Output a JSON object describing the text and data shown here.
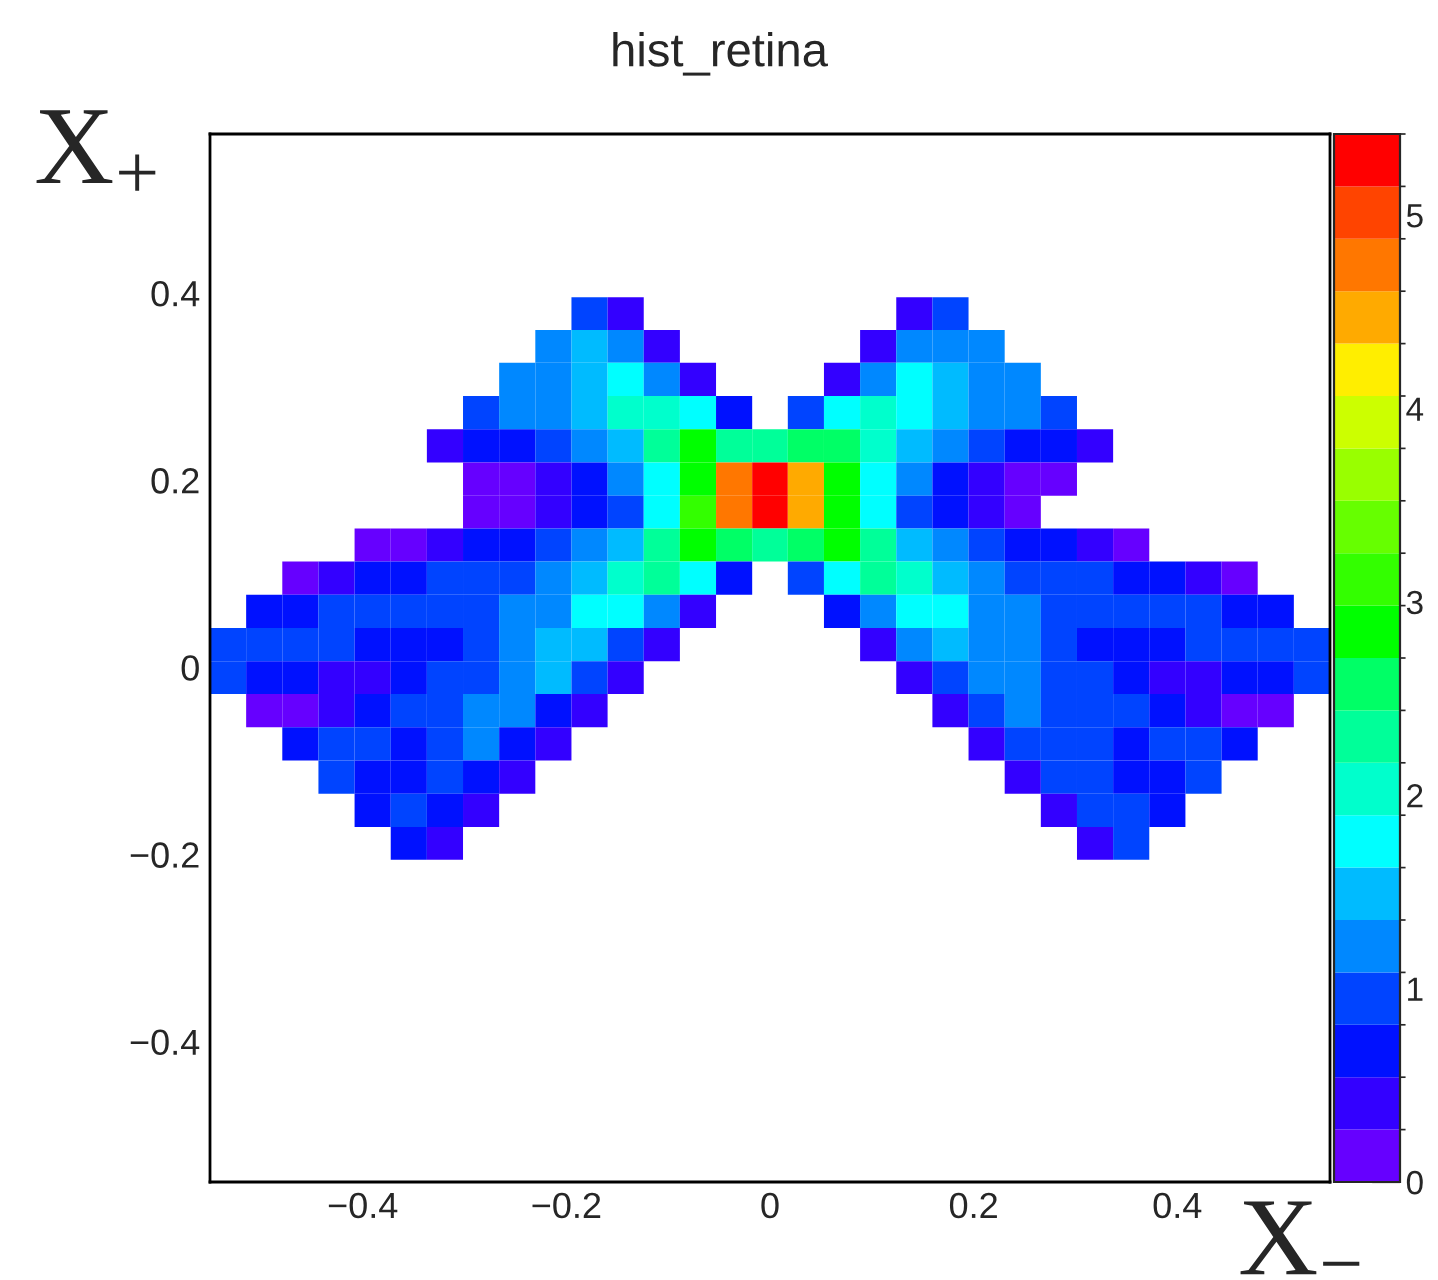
{
  "chart_data": {
    "type": "heatmap",
    "title": "hist_retina",
    "xlabel": "X$_{−}$",
    "ylabel": "X$_{+}$",
    "x": [
      -0.532,
      -0.497,
      -0.461,
      -0.426,
      -0.39,
      -0.355,
      -0.319,
      -0.284,
      -0.248,
      -0.213,
      -0.177,
      -0.142,
      -0.106,
      -0.071,
      -0.035,
      0,
      0.035,
      0.071,
      0.106,
      0.142,
      0.177,
      0.213,
      0.248,
      0.284,
      0.319,
      0.355,
      0.39,
      0.426,
      0.461,
      0.497,
      0.532
    ],
    "y": [
      0.378,
      0.343,
      0.308,
      0.272,
      0.237,
      0.201,
      0.166,
      0.131,
      0.095,
      0.06,
      0.024,
      -0.011,
      -0.046,
      -0.082,
      -0.117,
      -0.153,
      -0.188
    ],
    "cells": [
      [
        null,
        null,
        null,
        null,
        null,
        null,
        null,
        null,
        null,
        null,
        0.95,
        0.41,
        null,
        null,
        null,
        null,
        null,
        null,
        null,
        0.41,
        0.95,
        null,
        null,
        null,
        null,
        null,
        null,
        null,
        null,
        null,
        null
      ],
      [
        null,
        null,
        null,
        null,
        null,
        null,
        null,
        null,
        null,
        1.22,
        1.49,
        1.22,
        0.41,
        null,
        null,
        null,
        null,
        null,
        0.41,
        1.22,
        1.22,
        1.22,
        null,
        null,
        null,
        null,
        null,
        null,
        null,
        null,
        null
      ],
      [
        null,
        null,
        null,
        null,
        null,
        null,
        null,
        null,
        1.22,
        1.22,
        1.49,
        1.76,
        1.22,
        0.41,
        null,
        null,
        null,
        0.41,
        1.22,
        1.76,
        1.49,
        1.22,
        1.22,
        null,
        null,
        null,
        null,
        null,
        null,
        null,
        null
      ],
      [
        null,
        null,
        null,
        null,
        null,
        null,
        null,
        0.95,
        1.22,
        1.22,
        1.49,
        2.03,
        2.03,
        1.76,
        0.68,
        null,
        0.95,
        1.76,
        2.03,
        1.76,
        1.49,
        1.22,
        1.22,
        0.95,
        null,
        null,
        null,
        null,
        null,
        null,
        null
      ],
      [
        null,
        null,
        null,
        null,
        null,
        null,
        0.41,
        0.68,
        0.68,
        0.95,
        1.22,
        1.49,
        2.3,
        2.85,
        2.3,
        2.3,
        2.57,
        2.57,
        2.03,
        1.49,
        1.22,
        0.95,
        0.68,
        0.68,
        0.41,
        null,
        null,
        null,
        null,
        null,
        null
      ],
      [
        null,
        null,
        null,
        null,
        null,
        null,
        null,
        0.14,
        0.14,
        0.41,
        0.68,
        1.22,
        1.76,
        2.85,
        4.74,
        5.28,
        4.47,
        2.85,
        1.76,
        1.22,
        0.68,
        0.41,
        0.14,
        0.14,
        null,
        null,
        null,
        null,
        null,
        null,
        null
      ],
      [
        null,
        null,
        null,
        null,
        null,
        null,
        null,
        0.14,
        0.14,
        0.41,
        0.68,
        0.95,
        1.76,
        3.12,
        4.74,
        5.28,
        4.47,
        2.85,
        1.76,
        0.95,
        0.68,
        0.41,
        0.14,
        null,
        null,
        null,
        null,
        null,
        null,
        null,
        null
      ],
      [
        null,
        null,
        null,
        null,
        0.14,
        0.14,
        0.41,
        0.68,
        0.68,
        0.95,
        1.22,
        1.49,
        2.3,
        2.85,
        2.57,
        2.3,
        2.57,
        2.85,
        2.3,
        1.49,
        1.22,
        0.95,
        0.68,
        0.68,
        0.41,
        0.14,
        null,
        null,
        null,
        null,
        null
      ],
      [
        null,
        null,
        0.14,
        0.41,
        0.68,
        0.68,
        0.95,
        0.95,
        0.95,
        1.22,
        1.49,
        2.03,
        2.3,
        1.76,
        0.68,
        null,
        0.95,
        1.76,
        2.3,
        2.03,
        1.49,
        1.22,
        0.95,
        0.95,
        0.95,
        0.68,
        0.68,
        0.41,
        0.14,
        null,
        null
      ],
      [
        null,
        0.68,
        0.68,
        0.95,
        0.95,
        0.95,
        0.95,
        0.95,
        1.22,
        1.22,
        1.76,
        1.76,
        1.22,
        0.41,
        null,
        null,
        null,
        0.68,
        1.22,
        1.76,
        1.76,
        1.22,
        1.22,
        0.95,
        0.95,
        0.95,
        0.95,
        0.95,
        0.68,
        0.68,
        null
      ],
      [
        0.95,
        0.95,
        0.95,
        0.95,
        0.68,
        0.68,
        0.68,
        0.95,
        1.22,
        1.49,
        1.49,
        0.95,
        0.41,
        null,
        null,
        null,
        null,
        null,
        0.41,
        1.22,
        1.49,
        1.22,
        1.22,
        0.95,
        0.68,
        0.68,
        0.68,
        0.95,
        0.95,
        0.95,
        0.95
      ],
      [
        0.95,
        0.68,
        0.68,
        0.41,
        0.41,
        0.68,
        0.95,
        0.95,
        1.22,
        1.49,
        0.95,
        0.41,
        null,
        null,
        null,
        null,
        null,
        null,
        null,
        0.41,
        0.95,
        1.22,
        1.22,
        0.95,
        0.95,
        0.68,
        0.41,
        0.41,
        0.68,
        0.68,
        0.95
      ],
      [
        null,
        0.14,
        0.14,
        0.41,
        0.68,
        0.95,
        0.95,
        1.22,
        1.22,
        0.68,
        0.41,
        null,
        null,
        null,
        null,
        null,
        null,
        null,
        null,
        null,
        0.41,
        0.95,
        1.22,
        0.95,
        0.95,
        0.95,
        0.68,
        0.41,
        0.14,
        0.14,
        null
      ],
      [
        null,
        null,
        0.68,
        0.95,
        0.95,
        0.68,
        0.95,
        1.22,
        0.68,
        0.41,
        null,
        null,
        null,
        null,
        null,
        null,
        null,
        null,
        null,
        null,
        null,
        0.41,
        0.95,
        0.95,
        0.95,
        0.68,
        0.95,
        0.95,
        0.68,
        null,
        null
      ],
      [
        null,
        null,
        null,
        0.95,
        0.68,
        0.68,
        0.95,
        0.68,
        0.41,
        null,
        null,
        null,
        null,
        null,
        null,
        null,
        null,
        null,
        null,
        null,
        null,
        null,
        0.41,
        0.95,
        0.95,
        0.68,
        0.68,
        0.95,
        null,
        null,
        null
      ],
      [
        null,
        null,
        null,
        null,
        0.68,
        0.95,
        0.68,
        0.41,
        null,
        null,
        null,
        null,
        null,
        null,
        null,
        null,
        null,
        null,
        null,
        null,
        null,
        null,
        null,
        0.41,
        0.95,
        0.95,
        0.68,
        null,
        null,
        null,
        null
      ],
      [
        null,
        null,
        null,
        null,
        null,
        0.68,
        0.41,
        null,
        null,
        null,
        null,
        null,
        null,
        null,
        null,
        null,
        null,
        null,
        null,
        null,
        null,
        null,
        null,
        null,
        0.41,
        0.95,
        null,
        null,
        null,
        null,
        null
      ]
    ],
    "xlim": [
      -0.55,
      0.55
    ],
    "ylim": [
      -0.55,
      0.57
    ],
    "xticks": [
      {
        "value": -0.4,
        "label": "−0.4"
      },
      {
        "value": -0.2,
        "label": "−0.2"
      },
      0,
      0.2,
      0.4
    ],
    "yticks": [
      {
        "value": -0.4,
        "label": "−0.4"
      },
      {
        "value": -0.2,
        "label": "−0.2"
      },
      0,
      0.2,
      0.4
    ],
    "clim": [
      0,
      5.42
    ],
    "cticks": [
      0,
      1,
      2,
      3,
      4,
      5
    ]
  }
}
